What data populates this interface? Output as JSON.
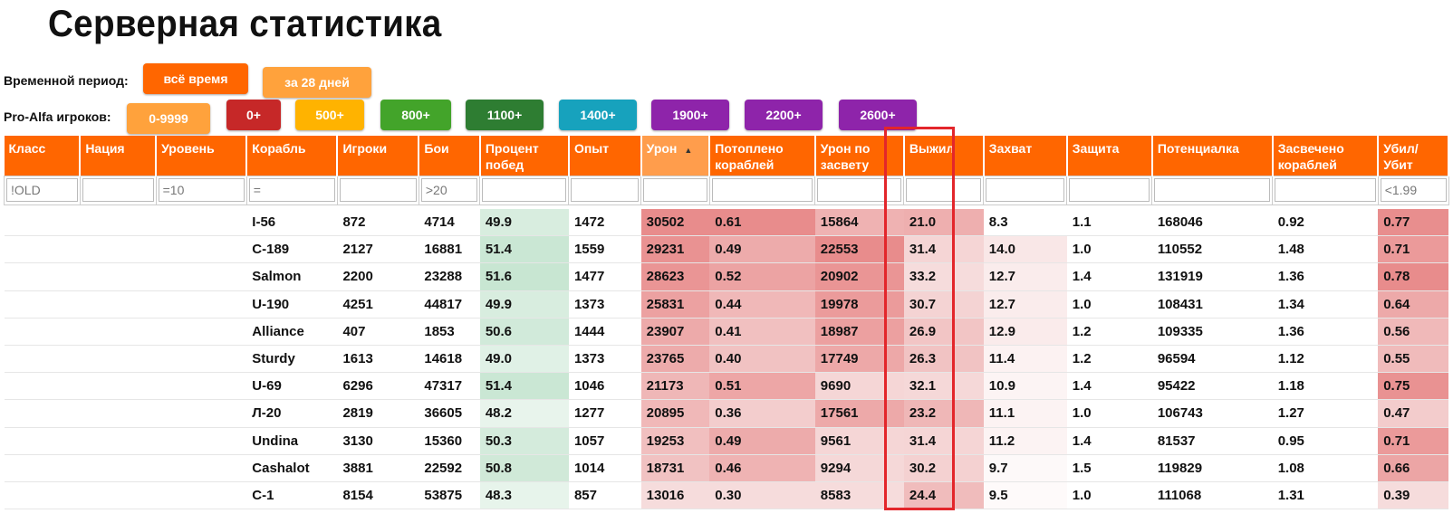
{
  "page": {
    "title": "Серверная статистика"
  },
  "period": {
    "label": "Временной период:",
    "buttons": [
      {
        "label": "всё время",
        "color": "#ff6600"
      },
      {
        "label": "за 28 дней",
        "color": "#ffa23c"
      }
    ]
  },
  "players": {
    "label": "Pro-Alfa игроков:",
    "buttons": [
      {
        "label": "0-9999",
        "color": "#ffa23c"
      },
      {
        "label": "0+",
        "color": "#c62828"
      },
      {
        "label": "500+",
        "color": "#ffb300"
      },
      {
        "label": "800+",
        "color": "#43a42a"
      },
      {
        "label": "1100+",
        "color": "#2e7d32"
      },
      {
        "label": "1400+",
        "color": "#17a2bd"
      },
      {
        "label": "1900+",
        "color": "#8e24aa"
      },
      {
        "label": "2200+",
        "color": "#8e24aa"
      },
      {
        "label": "2600+",
        "color": "#8e24aa"
      }
    ]
  },
  "table": {
    "headers": [
      "Класс",
      "Нация",
      "Уровень",
      "Корабль",
      "Игроки",
      "Бои",
      "Процент\nпобед",
      "Опыт",
      "Урон",
      "Потоплено\nкораблей",
      "Урон по\nзасвету",
      "Выжил",
      "Захват",
      "Защита",
      "Потенциалка",
      "Засвечено\nкораблей",
      "Убил/\nУбит"
    ],
    "filters": [
      "!OLD",
      "",
      "=10",
      "=",
      "",
      ">20",
      "",
      "",
      "",
      "",
      "",
      "",
      "",
      "",
      "",
      "",
      "<1.99"
    ],
    "sorted_column_color": "#ff9d4c",
    "highlight_color": "#e3262b",
    "rows": [
      [
        "",
        "",
        "",
        "I-56",
        "872",
        "4714",
        "49.9",
        "1472",
        "30502",
        "0.61",
        "15864",
        "21.0",
        "8.3",
        "1.1",
        "168046",
        "0.92",
        "0.77"
      ],
      [
        "",
        "",
        "",
        "С-189",
        "2127",
        "16881",
        "51.4",
        "1559",
        "29231",
        "0.49",
        "22553",
        "31.4",
        "14.0",
        "1.0",
        "110552",
        "1.48",
        "0.71"
      ],
      [
        "",
        "",
        "",
        "Salmon",
        "2200",
        "23288",
        "51.6",
        "1477",
        "28623",
        "0.52",
        "20902",
        "33.2",
        "12.7",
        "1.4",
        "131919",
        "1.36",
        "0.78"
      ],
      [
        "",
        "",
        "",
        "U-190",
        "4251",
        "44817",
        "49.9",
        "1373",
        "25831",
        "0.44",
        "19978",
        "30.7",
        "12.7",
        "1.0",
        "108431",
        "1.34",
        "0.64"
      ],
      [
        "",
        "",
        "",
        "Alliance",
        "407",
        "1853",
        "50.6",
        "1444",
        "23907",
        "0.41",
        "18987",
        "26.9",
        "12.9",
        "1.2",
        "109335",
        "1.36",
        "0.56"
      ],
      [
        "",
        "",
        "",
        "Sturdy",
        "1613",
        "14618",
        "49.0",
        "1373",
        "23765",
        "0.40",
        "17749",
        "26.3",
        "11.4",
        "1.2",
        "96594",
        "1.12",
        "0.55"
      ],
      [
        "",
        "",
        "",
        "U-69",
        "6296",
        "47317",
        "51.4",
        "1046",
        "21173",
        "0.51",
        "9690",
        "32.1",
        "10.9",
        "1.4",
        "95422",
        "1.18",
        "0.75"
      ],
      [
        "",
        "",
        "",
        "Л-20",
        "2819",
        "36605",
        "48.2",
        "1277",
        "20895",
        "0.36",
        "17561",
        "23.2",
        "11.1",
        "1.0",
        "106743",
        "1.27",
        "0.47"
      ],
      [
        "",
        "",
        "",
        "Undina",
        "3130",
        "15360",
        "50.3",
        "1057",
        "19253",
        "0.49",
        "9561",
        "31.4",
        "11.2",
        "1.4",
        "81537",
        "0.95",
        "0.71"
      ],
      [
        "",
        "",
        "",
        "Cashalot",
        "3881",
        "22592",
        "50.8",
        "1014",
        "18731",
        "0.46",
        "9294",
        "30.2",
        "9.7",
        "1.5",
        "119829",
        "1.08",
        "0.66"
      ],
      [
        "",
        "",
        "",
        "С-1",
        "8154",
        "53875",
        "48.3",
        "857",
        "13016",
        "0.30",
        "8583",
        "24.4",
        "9.5",
        "1.0",
        "111068",
        "1.31",
        "0.39"
      ]
    ]
  }
}
